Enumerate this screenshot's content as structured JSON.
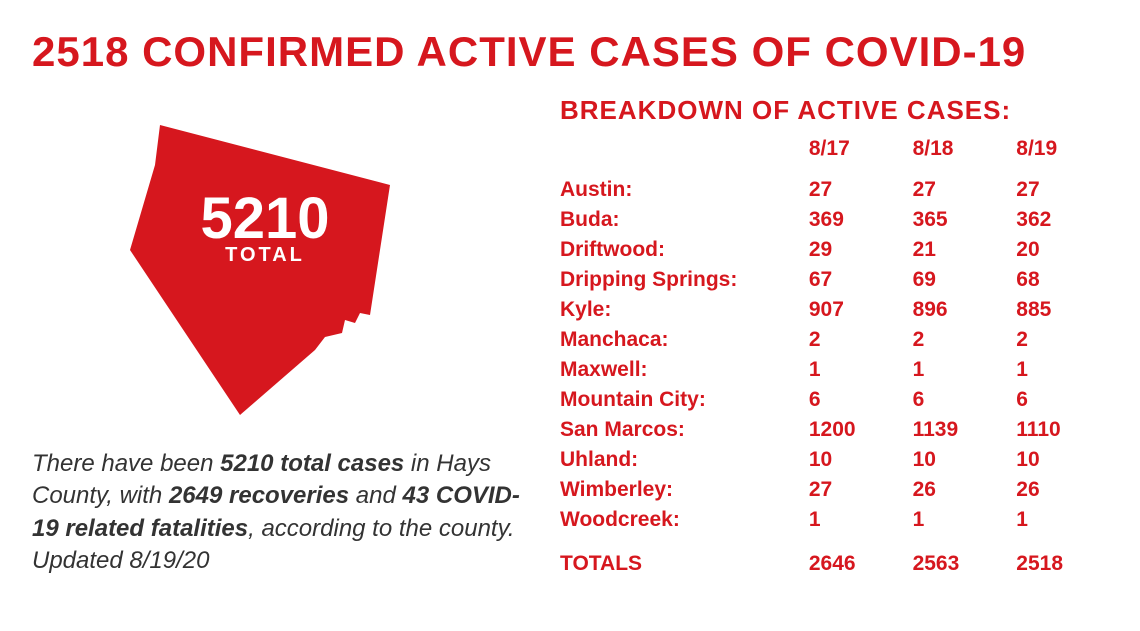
{
  "colors": {
    "accent": "#d6171e",
    "text": "#333333",
    "bg": "#ffffff"
  },
  "title": "2518 CONFIRMED ACTIVE CASES OF COVID-19",
  "map": {
    "big_number": "5210",
    "label": "TOTAL"
  },
  "summary": {
    "pre": "There have been ",
    "b1": "5210 total cases",
    "mid1": " in Hays County, with ",
    "b2": "2649 recoveries",
    "mid2": " and ",
    "b3": "43 COVID-19 related fatalities",
    "post": ", according to the county. Updated 8/19/20"
  },
  "breakdown": {
    "title": "BREAKDOWN OF ACTIVE CASES:",
    "date_cols": [
      "8/17",
      "8/18",
      "8/19"
    ],
    "rows": [
      {
        "name": "Austin:",
        "v": [
          "27",
          "27",
          "27"
        ]
      },
      {
        "name": "Buda:",
        "v": [
          "369",
          "365",
          "362"
        ]
      },
      {
        "name": "Driftwood:",
        "v": [
          "29",
          "21",
          "20"
        ]
      },
      {
        "name": "Dripping Springs:",
        "v": [
          "67",
          "69",
          "68"
        ]
      },
      {
        "name": "Kyle:",
        "v": [
          "907",
          "896",
          "885"
        ]
      },
      {
        "name": "Manchaca:",
        "v": [
          "2",
          "2",
          "2"
        ]
      },
      {
        "name": "Maxwell:",
        "v": [
          "1",
          "1",
          "1"
        ]
      },
      {
        "name": "Mountain City:",
        "v": [
          "6",
          "6",
          "6"
        ]
      },
      {
        "name": "San Marcos:",
        "v": [
          "1200",
          "1139",
          "1110"
        ]
      },
      {
        "name": "Uhland:",
        "v": [
          "10",
          "10",
          "10"
        ]
      },
      {
        "name": "Wimberley:",
        "v": [
          "27",
          "26",
          "26"
        ]
      },
      {
        "name": "Woodcreek:",
        "v": [
          "1",
          "1",
          "1"
        ]
      }
    ],
    "totals": {
      "label": "TOTALS",
      "v": [
        "2646",
        "2563",
        "2518"
      ]
    }
  }
}
